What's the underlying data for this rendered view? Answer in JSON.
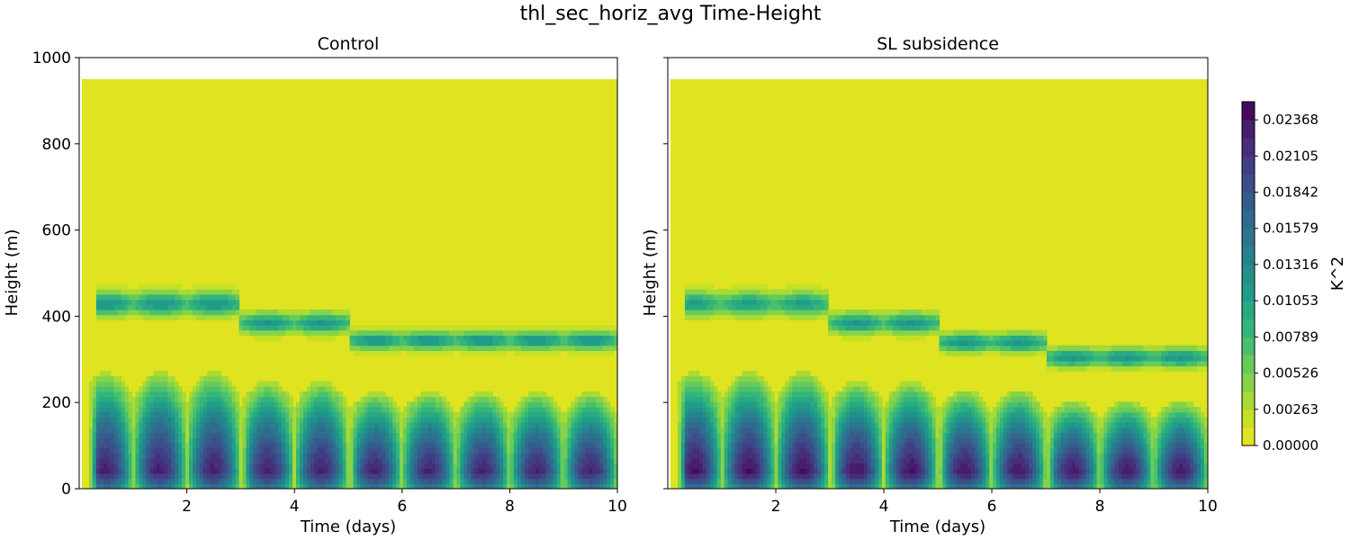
{
  "figure": {
    "title": "thl_sec_horiz_avg Time-Height"
  },
  "chart_data": [
    {
      "type": "heatmap",
      "title": "Control",
      "xlabel": "Time (days)",
      "ylabel": "Height (m)",
      "xlim": [
        0,
        10
      ],
      "ylim": [
        0,
        1000
      ],
      "xticks": [
        2,
        4,
        6,
        8,
        10
      ],
      "yticks": [
        0,
        200,
        400,
        600,
        800,
        1000
      ],
      "data_top": 950,
      "upper_band": [
        {
          "t0": 0.3,
          "t1": 3.0,
          "z": 430,
          "half_width": 28,
          "peak": 0.012
        },
        {
          "t0": 3.0,
          "t1": 5.0,
          "z": 385,
          "half_width": 24,
          "peak": 0.012
        },
        {
          "t0": 5.0,
          "t1": 10.0,
          "z": 345,
          "half_width": 22,
          "peak": 0.012
        }
      ],
      "surface_layer": {
        "segments": [
          {
            "t0": 0.2,
            "t1": 3.0,
            "top": 270
          },
          {
            "t0": 3.0,
            "t1": 5.0,
            "top": 250
          },
          {
            "t0": 5.0,
            "t1": 10.0,
            "top": 225
          }
        ],
        "daily_peak": 0.021
      }
    },
    {
      "type": "heatmap",
      "title": "SL subsidence",
      "xlabel": "Time (days)",
      "ylabel": "Height (m)",
      "xlim": [
        0,
        10
      ],
      "ylim": [
        0,
        1000
      ],
      "xticks": [
        2,
        4,
        6,
        8,
        10
      ],
      "yticks": [
        0,
        200,
        400,
        600,
        800,
        1000
      ],
      "data_top": 950,
      "upper_band": [
        {
          "t0": 0.3,
          "t1": 3.0,
          "z": 430,
          "half_width": 28,
          "peak": 0.011
        },
        {
          "t0": 3.0,
          "t1": 5.0,
          "z": 385,
          "half_width": 24,
          "peak": 0.012
        },
        {
          "t0": 5.0,
          "t1": 7.0,
          "z": 340,
          "half_width": 22,
          "peak": 0.012
        },
        {
          "t0": 7.0,
          "t1": 10.0,
          "z": 305,
          "half_width": 22,
          "peak": 0.012
        }
      ],
      "surface_layer": {
        "segments": [
          {
            "t0": 0.2,
            "t1": 3.0,
            "top": 270
          },
          {
            "t0": 3.0,
            "t1": 5.0,
            "top": 250
          },
          {
            "t0": 5.0,
            "t1": 7.0,
            "top": 230
          },
          {
            "t0": 7.0,
            "t1": 10.0,
            "top": 205
          }
        ],
        "daily_peak": 0.022
      }
    }
  ],
  "colorbar": {
    "label": "K^2",
    "min": 0.0,
    "max": 0.025,
    "colormap": "viridis_r",
    "tick_values": [
      0.0,
      0.00263,
      0.00526,
      0.00789,
      0.01053,
      0.01316,
      0.01579,
      0.01842,
      0.02105,
      0.02368
    ],
    "tick_labels": [
      "0.00000",
      "0.00263",
      "0.00526",
      "0.00789",
      "0.01053",
      "0.01316",
      "0.01579",
      "0.01842",
      "0.02105",
      "0.02368"
    ]
  }
}
